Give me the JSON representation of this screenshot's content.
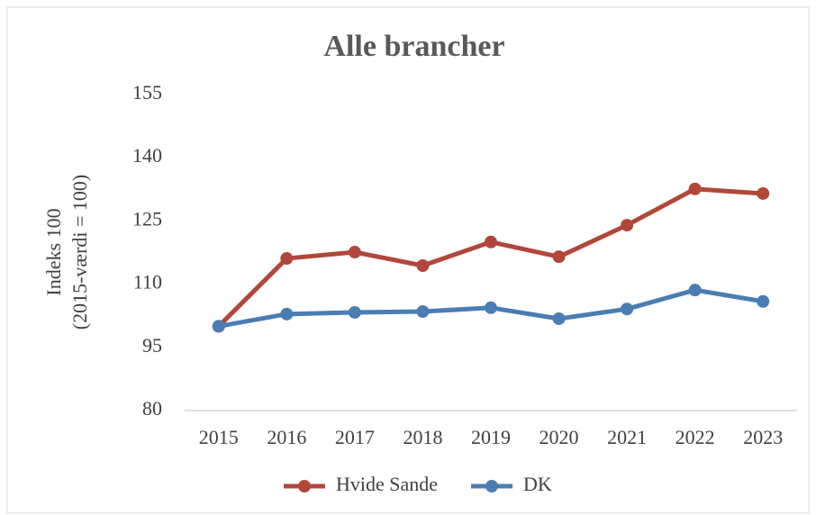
{
  "chart_data": {
    "type": "line",
    "title": "Alle brancher",
    "ylabel": [
      "Indeks 100",
      "(2015-værdi = 100)"
    ],
    "categories": [
      "2015",
      "2016",
      "2017",
      "2018",
      "2019",
      "2020",
      "2021",
      "2022",
      "2023"
    ],
    "series": [
      {
        "name": "Hvide Sande",
        "color": "#b0473a",
        "values": [
          100,
          116.1,
          117.6,
          114.4,
          120,
          116.5,
          124,
          132.6,
          131.5
        ]
      },
      {
        "name": "DK",
        "color": "#4a7db3",
        "values": [
          100,
          102.9,
          103.3,
          103.5,
          104.4,
          101.8,
          104.1,
          108.6,
          105.9
        ]
      }
    ],
    "ylim": [
      80,
      155
    ],
    "yticks": [
      80,
      95,
      110,
      125,
      140,
      155
    ],
    "grid": false,
    "legend": "bottom"
  }
}
